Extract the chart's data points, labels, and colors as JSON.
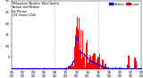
{
  "bg_color": "#ffffff",
  "bar_color": "#ff0000",
  "median_color": "#0000ff",
  "legend_actual_color": "#ff0000",
  "legend_median_color": "#0000ff",
  "n_points": 1440,
  "y_max": 30,
  "y_ticks": [
    5,
    10,
    15,
    20,
    25,
    30
  ],
  "tick_fontsize": 2.8,
  "legend_fontsize": 2.5,
  "title_text": "Milwaukee Weather Wind Speed\nActual and Median\nby Minute\n(24 Hours) (Old)"
}
